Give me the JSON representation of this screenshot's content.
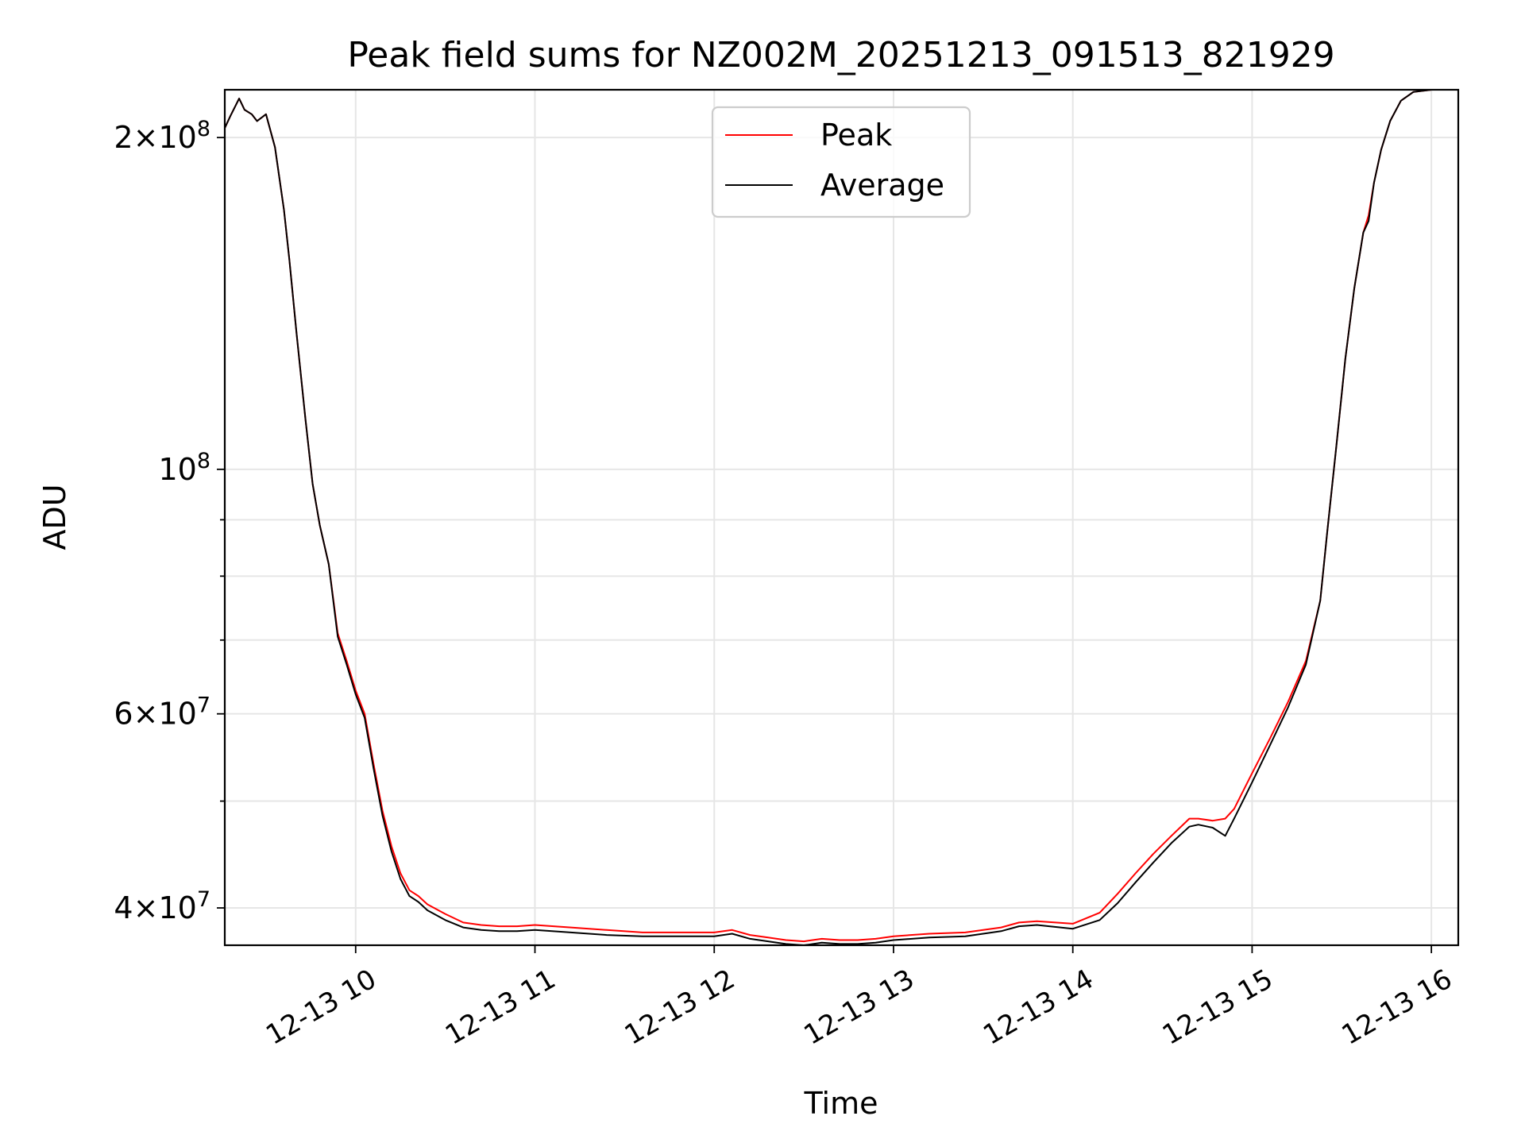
{
  "chart_data": {
    "type": "line",
    "title": "Peak field sums for NZ002M_20251213_091513_821929",
    "xlabel": "Time",
    "ylabel": "ADU",
    "yscale": "log",
    "xlim": [
      9.27,
      16.15
    ],
    "ylim": [
      37000000,
      221000000
    ],
    "grid": true,
    "legend_position": "upper center",
    "x_ticks": [
      {
        "value": 10,
        "label": "12-13 10"
      },
      {
        "value": 11,
        "label": "12-13 11"
      },
      {
        "value": 12,
        "label": "12-13 12"
      },
      {
        "value": 13,
        "label": "12-13 13"
      },
      {
        "value": 14,
        "label": "12-13 14"
      },
      {
        "value": 15,
        "label": "12-13 15"
      },
      {
        "value": 16,
        "label": "12-13 16"
      }
    ],
    "y_major_ticks": [
      {
        "value": 40000000,
        "mant": "4",
        "exp": "7"
      },
      {
        "value": 60000000,
        "mant": "6",
        "exp": "7"
      },
      {
        "value": 100000000,
        "mant": "",
        "exp": "8"
      },
      {
        "value": 200000000,
        "mant": "2",
        "exp": "8"
      }
    ],
    "y_minor_ticks": [
      50000000,
      70000000,
      80000000,
      90000000
    ],
    "series": [
      {
        "name": "Peak",
        "color": "#ff0000",
        "x": [
          9.27,
          9.3,
          9.35,
          9.38,
          9.42,
          9.45,
          9.5,
          9.55,
          9.6,
          9.63,
          9.67,
          9.72,
          9.76,
          9.8,
          9.85,
          9.9,
          9.95,
          10.0,
          10.05,
          10.1,
          10.15,
          10.2,
          10.25,
          10.3,
          10.35,
          10.4,
          10.5,
          10.6,
          10.7,
          10.8,
          10.9,
          11.0,
          11.2,
          11.4,
          11.6,
          11.8,
          12.0,
          12.1,
          12.2,
          12.3,
          12.4,
          12.5,
          12.6,
          12.7,
          12.8,
          12.9,
          13.0,
          13.2,
          13.4,
          13.6,
          13.7,
          13.8,
          14.0,
          14.15,
          14.25,
          14.35,
          14.45,
          14.55,
          14.65,
          14.7,
          14.78,
          14.85,
          14.9,
          15.0,
          15.1,
          15.2,
          15.3,
          15.38,
          15.42,
          15.47,
          15.52,
          15.57,
          15.62,
          15.65,
          15.68,
          15.72,
          15.77,
          15.83,
          15.9,
          16.0,
          16.15
        ],
        "y": [
          204000000,
          209000000,
          217000000,
          212000000,
          210000000,
          207000000,
          210000000,
          196000000,
          172000000,
          155000000,
          133000000,
          111000000,
          97000000,
          89000000,
          82000000,
          71000000,
          67000000,
          63000000,
          60000000,
          54000000,
          49000000,
          45500000,
          43000000,
          41500000,
          41000000,
          40300000,
          39500000,
          38800000,
          38600000,
          38500000,
          38500000,
          38600000,
          38400000,
          38200000,
          38000000,
          38000000,
          38000000,
          38200000,
          37800000,
          37600000,
          37400000,
          37300000,
          37500000,
          37400000,
          37400000,
          37500000,
          37700000,
          37900000,
          38000000,
          38400000,
          38800000,
          38900000,
          38700000,
          39600000,
          41200000,
          43000000,
          44800000,
          46500000,
          48200000,
          48200000,
          48000000,
          48200000,
          49200000,
          53000000,
          57000000,
          61500000,
          67000000,
          76000000,
          88000000,
          105000000,
          126000000,
          146000000,
          164000000,
          170000000,
          182000000,
          195000000,
          207000000,
          216000000,
          220000000,
          221000000,
          221000000
        ]
      },
      {
        "name": "Average",
        "color": "#000000",
        "x": [
          9.27,
          9.3,
          9.35,
          9.38,
          9.42,
          9.45,
          9.5,
          9.55,
          9.6,
          9.63,
          9.67,
          9.72,
          9.76,
          9.8,
          9.85,
          9.9,
          9.95,
          10.0,
          10.05,
          10.1,
          10.15,
          10.2,
          10.25,
          10.3,
          10.35,
          10.4,
          10.5,
          10.6,
          10.7,
          10.8,
          10.9,
          11.0,
          11.2,
          11.4,
          11.6,
          11.8,
          12.0,
          12.1,
          12.2,
          12.3,
          12.4,
          12.5,
          12.6,
          12.7,
          12.8,
          12.9,
          13.0,
          13.2,
          13.4,
          13.6,
          13.7,
          13.8,
          14.0,
          14.15,
          14.25,
          14.35,
          14.45,
          14.55,
          14.65,
          14.7,
          14.78,
          14.85,
          14.9,
          15.0,
          15.1,
          15.2,
          15.3,
          15.38,
          15.42,
          15.47,
          15.52,
          15.57,
          15.62,
          15.65,
          15.68,
          15.72,
          15.77,
          15.83,
          15.9,
          16.0,
          16.15
        ],
        "y": [
          204000000,
          209000000,
          217000000,
          212000000,
          210000000,
          207000000,
          210000000,
          196000000,
          172000000,
          155000000,
          133000000,
          111000000,
          97000000,
          89000000,
          82000000,
          70500000,
          66500000,
          62500000,
          59500000,
          53500000,
          48500000,
          45000000,
          42500000,
          41000000,
          40500000,
          39800000,
          39000000,
          38400000,
          38200000,
          38100000,
          38100000,
          38200000,
          38000000,
          37800000,
          37700000,
          37700000,
          37700000,
          37900000,
          37500000,
          37300000,
          37100000,
          37000000,
          37200000,
          37100000,
          37100000,
          37200000,
          37400000,
          37600000,
          37700000,
          38100000,
          38500000,
          38600000,
          38300000,
          39000000,
          40400000,
          42200000,
          44000000,
          45800000,
          47400000,
          47600000,
          47300000,
          46500000,
          48200000,
          52000000,
          56200000,
          60800000,
          66500000,
          76000000,
          88000000,
          105000000,
          126000000,
          146000000,
          164000000,
          168000000,
          182000000,
          195000000,
          207000000,
          216000000,
          220000000,
          221000000,
          221000000
        ]
      }
    ]
  }
}
